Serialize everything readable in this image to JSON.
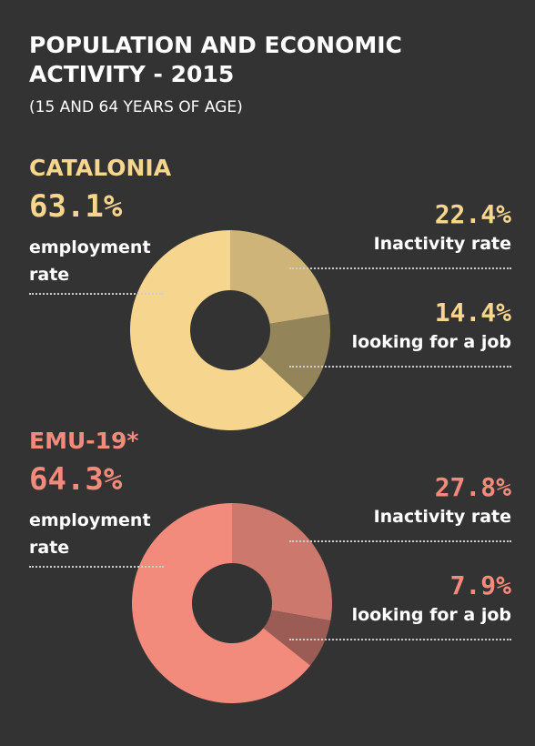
{
  "header": {
    "title": "POPULATION AND ECONOMIC ACTIVITY - 2015",
    "subtitle": "(15 AND 64 YEARS OF AGE)"
  },
  "chart_data": [
    {
      "type": "donut",
      "title": "CATALONIA",
      "categories": [
        "employment rate",
        "Inactivity rate",
        "looking for a job"
      ],
      "values": [
        63.1,
        22.4,
        14.4
      ],
      "value_labels": [
        "63.1%",
        "22.4%",
        "14.4%"
      ],
      "colors": [
        "#f6d58e",
        "#cfb47a",
        "#948459"
      ]
    },
    {
      "type": "donut",
      "title": "EMU-19*",
      "categories": [
        "employment rate",
        "Inactivity rate",
        "looking for a job"
      ],
      "values": [
        64.3,
        27.8,
        7.9
      ],
      "value_labels": [
        "64.3%",
        "27.8%",
        "7.9%"
      ],
      "colors": [
        "#f28b7c",
        "#cc786d",
        "#9a5c55"
      ]
    }
  ]
}
